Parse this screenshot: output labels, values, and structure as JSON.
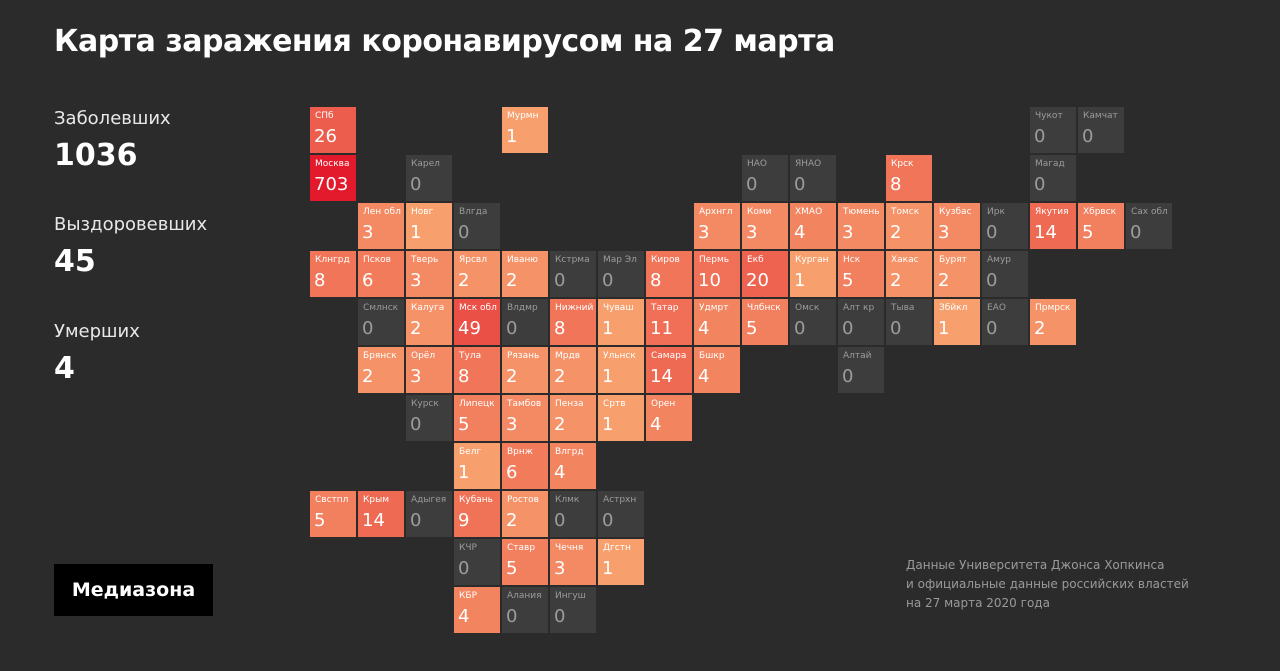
{
  "title": "Карта заражения коронавирусом на 27 марта",
  "stats": {
    "cases_label": "Заболевших",
    "cases_value": "1036",
    "recovered_label": "Выздоровевших",
    "recovered_value": "45",
    "deaths_label": "Умерших",
    "deaths_value": "4"
  },
  "logo": "Медиазона",
  "source": [
    "Данные Университета Джонса Хопкинса",
    "и официальные данные российских властей",
    "на 27 марта 2020 года"
  ],
  "colors": {
    "background": "#2b2b2b",
    "empty_cell": "#3d3d3d",
    "scale_low": "#f7a06e",
    "scale_high": "#e31a2c"
  },
  "map": {
    "rows": [
      [
        "СПб",
        null,
        null,
        null,
        "Мурмн",
        null,
        null,
        null,
        null,
        null,
        null,
        null,
        null,
        null,
        null,
        "Чукот",
        "Камчат"
      ],
      [
        "Москва",
        null,
        "Карел",
        null,
        null,
        null,
        null,
        null,
        null,
        "НАО",
        "ЯНАО",
        null,
        "Крск",
        null,
        null,
        "Магад",
        null
      ],
      [
        null,
        "Лен обл",
        "Новг",
        "Влгда",
        null,
        null,
        null,
        null,
        "Архнгл",
        "Коми",
        "ХМАО",
        "Тюмень",
        "Томск",
        "Кузбас",
        "Ирк",
        "Якутия",
        "Хбрвск",
        "Сах обл"
      ],
      [
        "Клнгрд",
        "Псков",
        "Тверь",
        "Ярсвл",
        "Иваню",
        "Кстрма",
        "Мар Эл",
        "Киров",
        "Пермь",
        "Екб",
        "Курган",
        "Нск",
        "Хакас",
        "Бурят",
        "Амур",
        null
      ],
      [
        null,
        "Смлнск",
        "Калуга",
        "Мск обл",
        "Влдмр",
        "Нижний",
        "Чуваш",
        "Татар",
        "Удмрт",
        "Члбнск",
        "Омск",
        "Алт кр",
        "Тыва",
        "Збйкл",
        "ЕАО",
        "Прмрск"
      ],
      [
        null,
        "Брянск",
        "Орёл",
        "Тула",
        "Рязань",
        "Мрдв",
        "Ульнск",
        "Самара",
        "Бшкр",
        null,
        null,
        "Алтай",
        null,
        null,
        null,
        null
      ],
      [
        null,
        null,
        "Курск",
        "Липецк",
        "Тамбов",
        "Пенза",
        "Сртв",
        "Орен",
        null,
        null,
        null,
        null,
        null,
        null,
        null,
        null
      ],
      [
        null,
        null,
        null,
        "Белг",
        "Врнж",
        "Влгрд",
        null,
        null,
        null,
        null,
        null,
        null,
        null,
        null,
        null,
        null
      ],
      [
        "Свстпл",
        "Крым",
        "Адыгея",
        "Кубань",
        "Ростов",
        "Клмк",
        "Астрхн",
        null,
        null,
        null,
        null,
        null,
        null,
        null,
        null,
        null
      ],
      [
        null,
        null,
        null,
        "КЧР",
        "Ставр",
        "Чечня",
        "Дгстн",
        null,
        null,
        null,
        null,
        null,
        null,
        null,
        null,
        null
      ],
      [
        null,
        null,
        null,
        "КБР",
        "Алания",
        "Ингуш",
        null,
        null,
        null,
        null,
        null,
        null,
        null,
        null,
        null,
        null
      ]
    ],
    "cases": [
      [
        "26",
        null,
        null,
        null,
        "1",
        null,
        null,
        null,
        null,
        null,
        null,
        null,
        null,
        null,
        null,
        "0",
        "0"
      ],
      [
        "703",
        null,
        "0",
        null,
        null,
        null,
        null,
        null,
        null,
        "0",
        "0",
        null,
        "8",
        null,
        null,
        "0",
        null
      ],
      [
        null,
        "3",
        "1",
        "0",
        null,
        null,
        null,
        null,
        "3",
        "3",
        "4",
        "3",
        "2",
        "3",
        "0",
        "14",
        "5",
        "0"
      ],
      [
        "8",
        "6",
        "3",
        "2",
        "2",
        "0",
        "0",
        "8",
        "10",
        "20",
        "1",
        "5",
        "2",
        "2",
        "0",
        null
      ],
      [
        null,
        "0",
        "2",
        "49",
        "0",
        "8",
        "1",
        "11",
        "4",
        "5",
        "0",
        "0",
        "0",
        "1",
        "0",
        "2"
      ],
      [
        null,
        "2",
        "3",
        "8",
        "2",
        "2",
        "1",
        "14",
        "4",
        null,
        null,
        "0",
        null,
        null,
        null,
        null
      ],
      [
        null,
        null,
        "0",
        "5",
        "3",
        "2",
        "1",
        "4",
        null,
        null,
        null,
        null,
        null,
        null,
        null,
        null
      ],
      [
        null,
        null,
        null,
        "1",
        "6",
        "4",
        null,
        null,
        null,
        null,
        null,
        null,
        null,
        null,
        null,
        null
      ],
      [
        "5",
        "14",
        "0",
        "9",
        "2",
        "0",
        "0",
        null,
        null,
        null,
        null,
        null,
        null,
        null,
        null,
        null
      ],
      [
        null,
        null,
        null,
        "0",
        "5",
        "3",
        "1",
        null,
        null,
        null,
        null,
        null,
        null,
        null,
        null,
        null
      ],
      [
        null,
        null,
        null,
        "4",
        "0",
        "0",
        null,
        null,
        null,
        null,
        null,
        null,
        null,
        null,
        null,
        null
      ]
    ]
  }
}
